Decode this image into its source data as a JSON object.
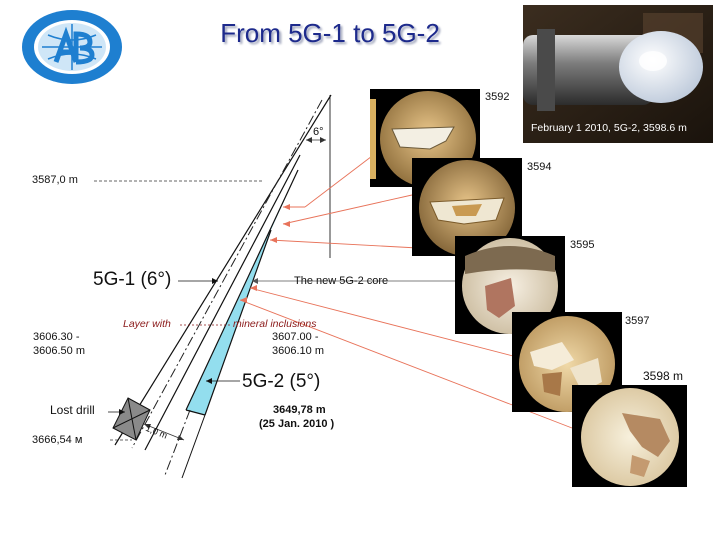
{
  "title": "From 5G-1 to 5G-2",
  "logo": {
    "icon": "institute-globe-logo"
  },
  "top_photo": {
    "caption": "February 1 2010, 5G-2, 3598.6 m",
    "icon": "drill-core-photo"
  },
  "diagram": {
    "depth_top": "3587,0 m",
    "angle_label": "6°",
    "well1_label": "5G-1 (6°)",
    "well2_label": "5G-2 (5°)",
    "new_core_label": "The new 5G-2 core",
    "layer_left": "Layer with",
    "layer_right": "mineral inclusions",
    "left_depth_line1": "3606.30 -",
    "left_depth_line2": "3606.50 m",
    "right_depth_line1": "3607.00 -",
    "right_depth_line2": "3606.10 m",
    "lost_drill": "Lost drill",
    "distance": "1,0 m",
    "bottom_depth": "3666,54 м",
    "end_depth": "3649,78 m",
    "end_date": "(25 Jan. 2010 )"
  },
  "core_samples": [
    {
      "label": "3592"
    },
    {
      "label": "3594"
    },
    {
      "label": "3595"
    },
    {
      "label": "3597"
    },
    {
      "label": "3598 m"
    }
  ],
  "colors": {
    "title": "#1d2a8c",
    "accent_red": "#e8735a",
    "core_fill": "#6fd3e8"
  }
}
